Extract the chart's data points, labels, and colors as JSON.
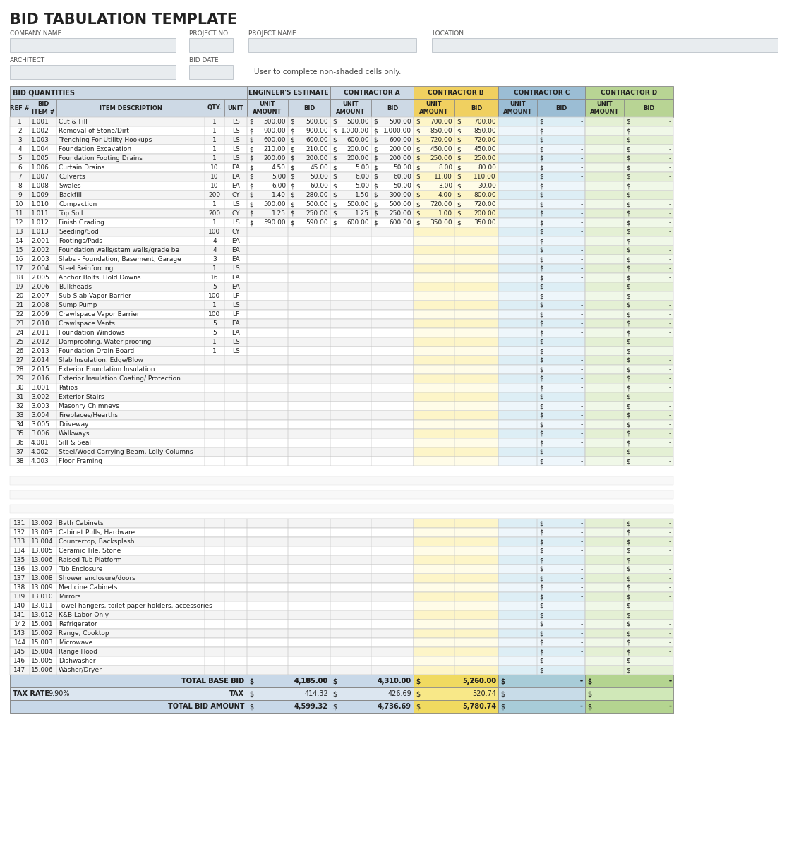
{
  "title": "BID TABULATION TEMPLATE",
  "user_note": "User to complete non-shaded cells only.",
  "totals": {
    "total_base_bid": {
      "eng": "4,185.00",
      "cont_a": "4,310.00",
      "cont_b": "5,260.00",
      "cont_c": "-",
      "cont_d": "-"
    },
    "tax_rate": "9.90%",
    "tax": {
      "eng": "414.32",
      "cont_a": "426.69",
      "cont_b": "520.74",
      "cont_c": "-",
      "cont_d": "-"
    },
    "total_bid_amount": {
      "eng": "4,599.32",
      "cont_a": "4,736.69",
      "cont_b": "5,780.74",
      "cont_c": "-",
      "cont_d": "-"
    }
  },
  "row_data": [
    [
      1,
      "1.001",
      "Cut & Fill",
      "1",
      "LS",
      "500.00",
      "500.00",
      "500.00",
      "500.00",
      "700.00",
      "700.00"
    ],
    [
      2,
      "1.002",
      "Removal of Stone/Dirt",
      "1",
      "LS",
      "900.00",
      "900.00",
      "1,000.00",
      "1,000.00",
      "850.00",
      "850.00"
    ],
    [
      3,
      "1.003",
      "Trenching For Utility Hookups",
      "1",
      "LS",
      "600.00",
      "600.00",
      "600.00",
      "600.00",
      "720.00",
      "720.00"
    ],
    [
      4,
      "1.004",
      "Foundation Excavation",
      "1",
      "LS",
      "210.00",
      "210.00",
      "200.00",
      "200.00",
      "450.00",
      "450.00"
    ],
    [
      5,
      "1.005",
      "Foundation Footing Drains",
      "1",
      "LS",
      "200.00",
      "200.00",
      "200.00",
      "200.00",
      "250.00",
      "250.00"
    ],
    [
      6,
      "1.006",
      "Curtain Drains",
      "10",
      "EA",
      "4.50",
      "45.00",
      "5.00",
      "50.00",
      "8.00",
      "80.00"
    ],
    [
      7,
      "1.007",
      "Culverts",
      "10",
      "EA",
      "5.00",
      "50.00",
      "6.00",
      "60.00",
      "11.00",
      "110.00"
    ],
    [
      8,
      "1.008",
      "Swales",
      "10",
      "EA",
      "6.00",
      "60.00",
      "5.00",
      "50.00",
      "3.00",
      "30.00"
    ],
    [
      9,
      "1.009",
      "Backfill",
      "200",
      "CY",
      "1.40",
      "280.00",
      "1.50",
      "300.00",
      "4.00",
      "800.00"
    ],
    [
      10,
      "1.010",
      "Compaction",
      "1",
      "LS",
      "500.00",
      "500.00",
      "500.00",
      "500.00",
      "720.00",
      "720.00"
    ],
    [
      11,
      "1.011",
      "Top Soil",
      "200",
      "CY",
      "1.25",
      "250.00",
      "1.25",
      "250.00",
      "1.00",
      "200.00"
    ],
    [
      12,
      "1.012",
      "Finish Grading",
      "1",
      "LS",
      "590.00",
      "590.00",
      "600.00",
      "600.00",
      "350.00",
      "350.00"
    ],
    [
      13,
      "1.013",
      "Seeding/Sod",
      "100",
      "CY",
      "",
      "",
      "",
      "",
      "",
      ""
    ],
    [
      14,
      "2.001",
      "Footings/Pads",
      "4",
      "EA",
      "",
      "",
      "",
      "",
      "",
      ""
    ],
    [
      15,
      "2.002",
      "Foundation walls/stem walls/grade be",
      "4",
      "EA",
      "",
      "",
      "",
      "",
      "",
      ""
    ],
    [
      16,
      "2.003",
      "Slabs - Foundation, Basement, Garage",
      "3",
      "EA",
      "",
      "",
      "",
      "",
      "",
      ""
    ],
    [
      17,
      "2.004",
      "Steel Reinforcing",
      "1",
      "LS",
      "",
      "",
      "",
      "",
      "",
      ""
    ],
    [
      18,
      "2.005",
      "Anchor Bolts, Hold Downs",
      "16",
      "EA",
      "",
      "",
      "",
      "",
      "",
      ""
    ],
    [
      19,
      "2.006",
      "Bulkheads",
      "5",
      "EA",
      "",
      "",
      "",
      "",
      "",
      ""
    ],
    [
      20,
      "2.007",
      "Sub-Slab Vapor Barrier",
      "100",
      "LF",
      "",
      "",
      "",
      "",
      "",
      ""
    ],
    [
      21,
      "2.008",
      "Sump Pump",
      "1",
      "LS",
      "",
      "",
      "",
      "",
      "",
      ""
    ],
    [
      22,
      "2.009",
      "Crawlspace Vapor Barrier",
      "100",
      "LF",
      "",
      "",
      "",
      "",
      "",
      ""
    ],
    [
      23,
      "2.010",
      "Crawlspace Vents",
      "5",
      "EA",
      "",
      "",
      "",
      "",
      "",
      ""
    ],
    [
      24,
      "2.011",
      "Foundation Windows",
      "5",
      "EA",
      "",
      "",
      "",
      "",
      "",
      ""
    ],
    [
      25,
      "2.012",
      "Damproofing, Water-proofing",
      "1",
      "LS",
      "",
      "",
      "",
      "",
      "",
      ""
    ],
    [
      26,
      "2.013",
      "Foundation Drain Board",
      "1",
      "LS",
      "",
      "",
      "",
      "",
      "",
      ""
    ],
    [
      27,
      "2.014",
      "Slab Insulation: Edge/Blow",
      "",
      "",
      "",
      "",
      "",
      "",
      "",
      ""
    ],
    [
      28,
      "2.015",
      "Exterior Foundation Insulation",
      "",
      "",
      "",
      "",
      "",
      "",
      "",
      ""
    ],
    [
      29,
      "2.016",
      "Exterior Insulation Coating/ Protection",
      "",
      "",
      "",
      "",
      "",
      "",
      "",
      ""
    ],
    [
      30,
      "3.001",
      "Patios",
      "",
      "",
      "",
      "",
      "",
      "",
      "",
      ""
    ],
    [
      31,
      "3.002",
      "Exterior Stairs",
      "",
      "",
      "",
      "",
      "",
      "",
      "",
      ""
    ],
    [
      32,
      "3.003",
      "Masonry Chimneys",
      "",
      "",
      "",
      "",
      "",
      "",
      "",
      ""
    ],
    [
      33,
      "3.004",
      "Fireplaces/Hearths",
      "",
      "",
      "",
      "",
      "",
      "",
      "",
      ""
    ],
    [
      34,
      "3.005",
      "Driveway",
      "",
      "",
      "",
      "",
      "",
      "",
      "",
      ""
    ],
    [
      35,
      "3.006",
      "Walkways",
      "",
      "",
      "",
      "",
      "",
      "",
      "",
      ""
    ],
    [
      36,
      "4.001",
      "Sill & Seal",
      "",
      "",
      "",
      "",
      "",
      "",
      "",
      ""
    ],
    [
      37,
      "4.002",
      "Steel/Wood Carrying Beam, Lolly Columns",
      "",
      "",
      "",
      "",
      "",
      "",
      "",
      ""
    ],
    [
      38,
      "4.003",
      "Floor Framing",
      "",
      "",
      "",
      "",
      "",
      "",
      "",
      ""
    ]
  ],
  "bottom_rows": [
    [
      131,
      "13.002",
      "Bath Cabinets",
      "",
      "",
      "",
      "",
      "",
      "",
      "",
      ""
    ],
    [
      132,
      "13.003",
      "Cabinet Pulls, Hardware",
      "",
      "",
      "",
      "",
      "",
      "",
      "",
      ""
    ],
    [
      133,
      "13.004",
      "Countertop, Backsplash",
      "",
      "",
      "",
      "",
      "",
      "",
      "",
      ""
    ],
    [
      134,
      "13.005",
      "Ceramic Tile, Stone",
      "",
      "",
      "",
      "",
      "",
      "",
      "",
      ""
    ],
    [
      135,
      "13.006",
      "Raised Tub Platform",
      "",
      "",
      "",
      "",
      "",
      "",
      "",
      ""
    ],
    [
      136,
      "13.007",
      "Tub Enclosure",
      "",
      "",
      "",
      "",
      "",
      "",
      "",
      ""
    ],
    [
      137,
      "13.008",
      "Shower enclosure/doors",
      "",
      "",
      "",
      "",
      "",
      "",
      "",
      ""
    ],
    [
      138,
      "13.009",
      "Medicine Cabinets",
      "",
      "",
      "",
      "",
      "",
      "",
      "",
      ""
    ],
    [
      139,
      "13.010",
      "Mirrors",
      "",
      "",
      "",
      "",
      "",
      "",
      "",
      ""
    ],
    [
      140,
      "13.011",
      "Towel hangers, toilet paper holders, accessories",
      "",
      "",
      "",
      "",
      "",
      "",
      "",
      ""
    ],
    [
      141,
      "13.012",
      "K&B Labor Only",
      "",
      "",
      "",
      "",
      "",
      "",
      "",
      ""
    ],
    [
      142,
      "15.001",
      "Refrigerator",
      "",
      "",
      "",
      "",
      "",
      "",
      "",
      ""
    ],
    [
      143,
      "15.002",
      "Range, Cooktop",
      "",
      "",
      "",
      "",
      "",
      "",
      "",
      ""
    ],
    [
      144,
      "15.003",
      "Microwave",
      "",
      "",
      "",
      "",
      "",
      "",
      "",
      ""
    ],
    [
      145,
      "15.004",
      "Range Hood",
      "",
      "",
      "",
      "",
      "",
      "",
      "",
      ""
    ],
    [
      146,
      "15.005",
      "Dishwasher",
      "",
      "",
      "",
      "",
      "",
      "",
      "",
      ""
    ],
    [
      147,
      "15.006",
      "Washer/Dryer",
      "",
      "",
      "",
      "",
      "",
      "",
      "",
      ""
    ]
  ]
}
